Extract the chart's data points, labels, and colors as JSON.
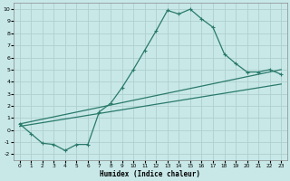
{
  "bg_color": "#c8e8e8",
  "grid_color": "#afd0d0",
  "line_color": "#2a7a6a",
  "xlabel": "Humidex (Indice chaleur)",
  "xlim": [
    -0.5,
    23.5
  ],
  "ylim": [
    -2.5,
    10.5
  ],
  "yticks": [
    -2,
    -1,
    0,
    1,
    2,
    3,
    4,
    5,
    6,
    7,
    8,
    9,
    10
  ],
  "xticks": [
    0,
    1,
    2,
    3,
    4,
    5,
    6,
    7,
    8,
    9,
    10,
    11,
    12,
    13,
    14,
    15,
    16,
    17,
    18,
    19,
    20,
    21,
    22,
    23
  ],
  "curve1_x": [
    0,
    1,
    2,
    3,
    4,
    5,
    6,
    7,
    8,
    9,
    10,
    11,
    12,
    13,
    14,
    15,
    16,
    17,
    18,
    19,
    20,
    21,
    22,
    23
  ],
  "curve1_y": [
    0.5,
    -0.3,
    -1.1,
    -1.2,
    -1.7,
    -1.2,
    -1.2,
    1.5,
    2.2,
    3.5,
    5.0,
    6.6,
    8.2,
    9.9,
    9.6,
    10.0,
    9.2,
    8.5,
    6.3,
    5.5,
    4.8,
    4.8,
    5.0,
    4.6
  ],
  "curve2_x": [
    0,
    23
  ],
  "curve2_y": [
    0.5,
    5.0
  ],
  "curve3_x": [
    0,
    23
  ],
  "curve3_y": [
    0.3,
    3.8
  ]
}
